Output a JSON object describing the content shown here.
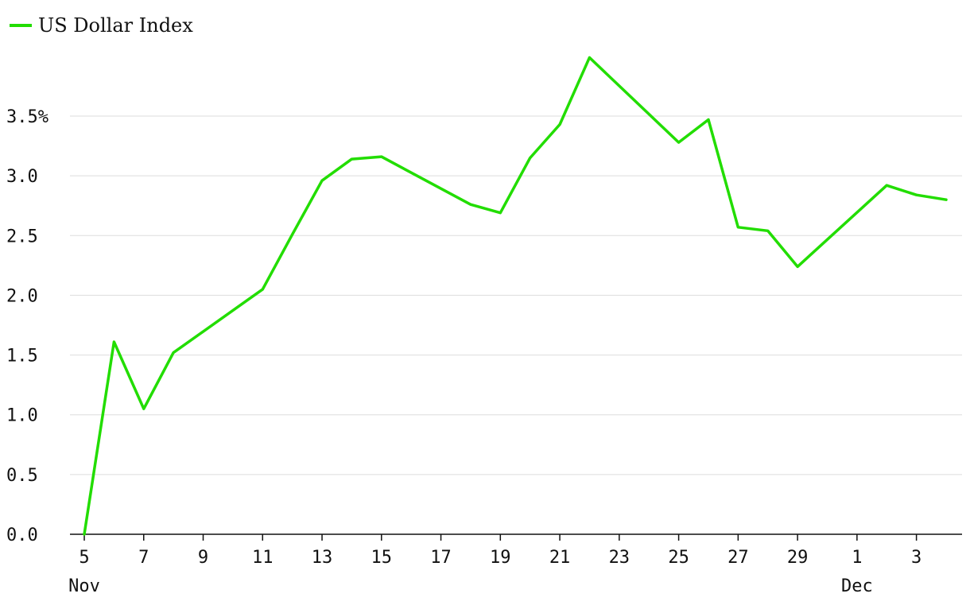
{
  "chart_data": {
    "type": "line",
    "series": [
      {
        "name": "US Dollar Index",
        "color": "#22dd00",
        "x": [
          "2024-11-05",
          "2024-11-06",
          "2024-11-07",
          "2024-11-08",
          "2024-11-11",
          "2024-11-12",
          "2024-11-13",
          "2024-11-14",
          "2024-11-15",
          "2024-11-18",
          "2024-11-19",
          "2024-11-20",
          "2024-11-21",
          "2024-11-22",
          "2024-11-25",
          "2024-11-26",
          "2024-11-27",
          "2024-11-28",
          "2024-11-29",
          "2024-12-02",
          "2024-12-03",
          "2024-12-04"
        ],
        "values": [
          0.0,
          1.61,
          1.05,
          1.52,
          2.05,
          2.51,
          2.96,
          3.14,
          3.16,
          2.76,
          2.69,
          3.15,
          3.43,
          3.99,
          3.28,
          3.47,
          2.57,
          2.54,
          2.24,
          2.92,
          2.84,
          2.8
        ]
      }
    ],
    "y_ticks": [
      "0.0",
      "0.5",
      "1.0",
      "1.5",
      "2.0",
      "2.5",
      "3.0",
      "3.5%"
    ],
    "y_tick_values": [
      0,
      0.5,
      1.0,
      1.5,
      2.0,
      2.5,
      3.0,
      3.5
    ],
    "x_ticks": [
      {
        "date": "2024-11-05",
        "label": "5",
        "month": "Nov"
      },
      {
        "date": "2024-11-07",
        "label": "7",
        "month": ""
      },
      {
        "date": "2024-11-09",
        "label": "9",
        "month": ""
      },
      {
        "date": "2024-11-11",
        "label": "11",
        "month": ""
      },
      {
        "date": "2024-11-13",
        "label": "13",
        "month": ""
      },
      {
        "date": "2024-11-15",
        "label": "15",
        "month": ""
      },
      {
        "date": "2024-11-17",
        "label": "17",
        "month": ""
      },
      {
        "date": "2024-11-19",
        "label": "19",
        "month": ""
      },
      {
        "date": "2024-11-21",
        "label": "21",
        "month": ""
      },
      {
        "date": "2024-11-23",
        "label": "23",
        "month": ""
      },
      {
        "date": "2024-11-25",
        "label": "25",
        "month": ""
      },
      {
        "date": "2024-11-27",
        "label": "27",
        "month": ""
      },
      {
        "date": "2024-11-29",
        "label": "29",
        "month": ""
      },
      {
        "date": "2024-12-01",
        "label": "1",
        "month": "Dec"
      },
      {
        "date": "2024-12-03",
        "label": "3",
        "month": ""
      }
    ],
    "xlim": [
      "2024-11-05",
      "2024-12-04"
    ],
    "ylim": [
      0,
      4.0
    ],
    "grid": true,
    "legend": "top-left",
    "title": "",
    "xlabel": "",
    "ylabel": ""
  }
}
